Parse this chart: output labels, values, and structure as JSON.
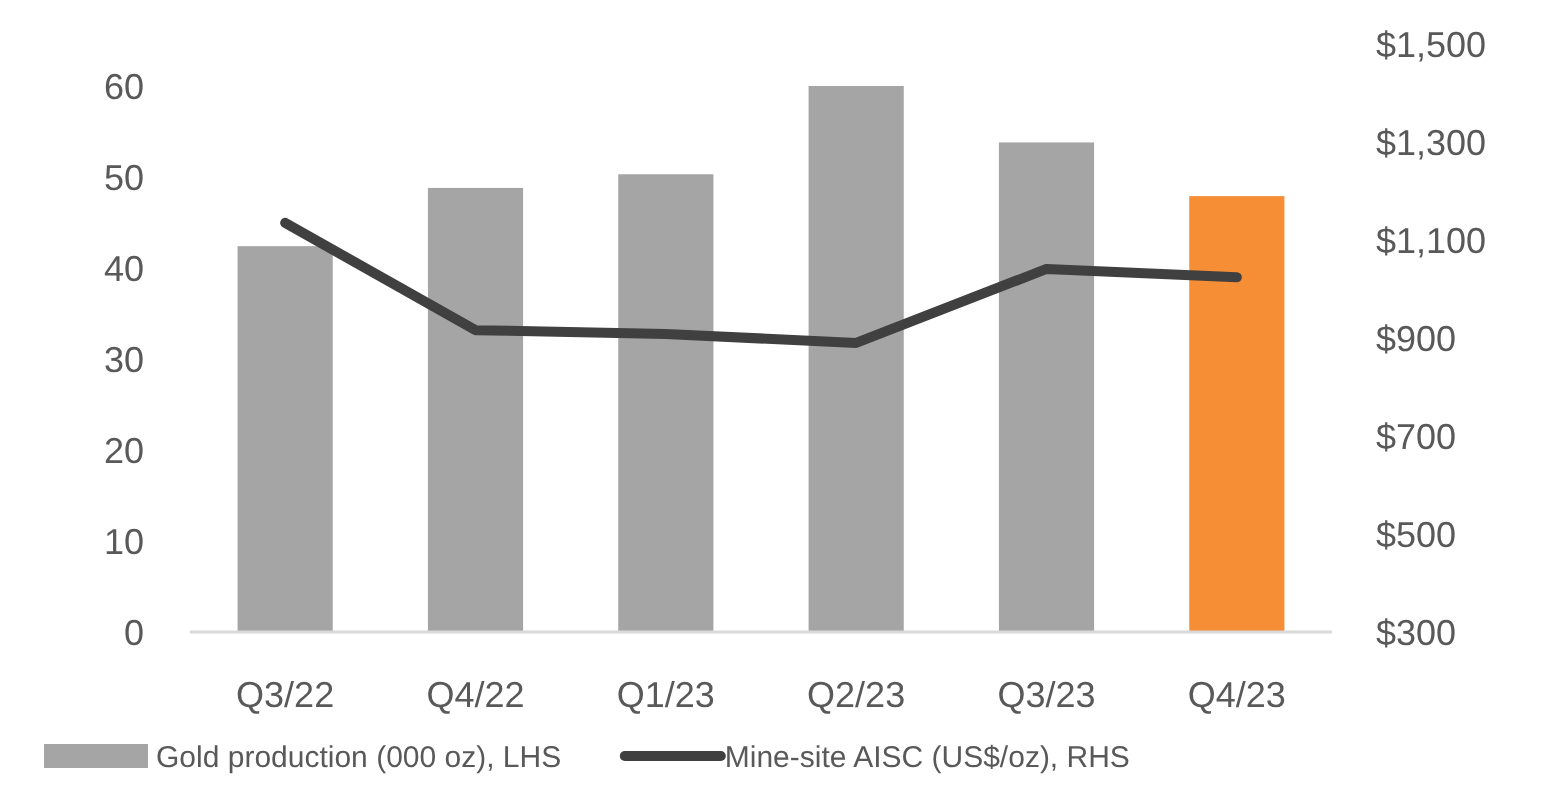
{
  "chart_data": {
    "type": "bar",
    "categories": [
      "Q3/22",
      "Q4/22",
      "Q1/23",
      "Q2/23",
      "Q3/23",
      "Q4/23"
    ],
    "series": [
      {
        "name": "Gold production (000 oz), LHS",
        "color": "#a5a5a5",
        "colors": [
          "#a5a5a5",
          "#a5a5a5",
          "#a5a5a5",
          "#a5a5a5",
          "#a5a5a5",
          "#f58e35"
        ],
        "values": [
          42.4,
          48.8,
          50.3,
          60,
          53.8,
          47.9
        ]
      },
      {
        "name": "Mine-site AISC (US$/oz), RHS",
        "type": "line",
        "axis": "y2",
        "color": "#404040",
        "values": [
          1135,
          916,
          908,
          890,
          1041,
          1024
        ]
      }
    ],
    "ylim": [
      0,
      60
    ],
    "yticks": [
      0,
      10,
      20,
      30,
      40,
      50,
      60
    ],
    "y2lim": [
      300,
      1500
    ],
    "y2ticks": [
      {
        "value": 300,
        "label": "$300"
      },
      {
        "value": 500,
        "label": "$500"
      },
      {
        "value": 700,
        "label": "$700"
      },
      {
        "value": 900,
        "label": "$900"
      },
      {
        "value": 1100,
        "label": "$1,100"
      },
      {
        "value": 1300,
        "label": "$1,300"
      },
      {
        "value": 1500,
        "label": "$1,500"
      }
    ],
    "legend": "bottom",
    "marker": "none",
    "grid": false
  }
}
